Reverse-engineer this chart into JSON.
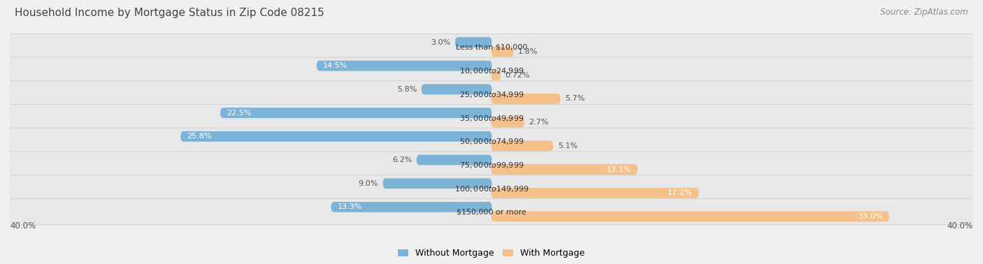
{
  "title": "Household Income by Mortgage Status in Zip Code 08215",
  "source": "Source: ZipAtlas.com",
  "categories": [
    "Less than $10,000",
    "$10,000 to $24,999",
    "$25,000 to $34,999",
    "$35,000 to $49,999",
    "$50,000 to $74,999",
    "$75,000 to $99,999",
    "$100,000 to $149,999",
    "$150,000 or more"
  ],
  "without_mortgage": [
    3.0,
    14.5,
    5.8,
    22.5,
    25.8,
    6.2,
    9.0,
    13.3
  ],
  "with_mortgage": [
    1.8,
    0.72,
    5.7,
    2.7,
    5.1,
    12.1,
    17.2,
    33.0
  ],
  "without_mortgage_labels": [
    "3.0%",
    "14.5%",
    "5.8%",
    "22.5%",
    "25.8%",
    "6.2%",
    "9.0%",
    "13.3%"
  ],
  "with_mortgage_labels": [
    "1.8%",
    "0.72%",
    "5.7%",
    "2.7%",
    "5.1%",
    "12.1%",
    "17.2%",
    "33.0%"
  ],
  "color_without": "#7EB3D8",
  "color_with": "#F5C08A",
  "xlim": 40.0,
  "axis_label_left": "40.0%",
  "axis_label_right": "40.0%",
  "title_fontsize": 11,
  "source_fontsize": 8.5,
  "bar_label_fontsize": 8,
  "category_fontsize": 8
}
